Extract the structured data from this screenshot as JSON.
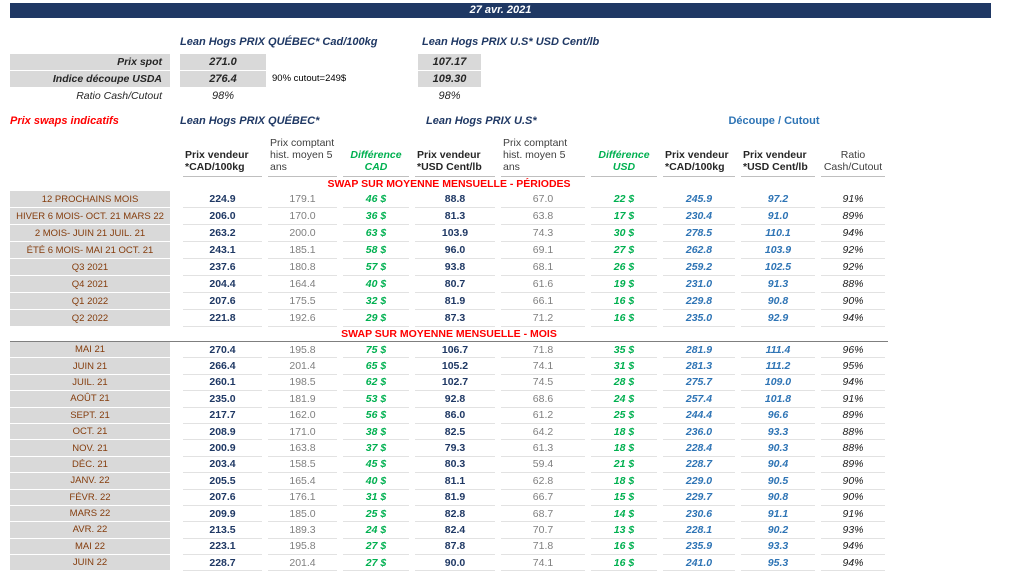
{
  "date": "27 avr. 2021",
  "spot": {
    "qc_title": "Lean Hogs PRIX QUÉBEC* Cad/100kg",
    "us_title": "Lean Hogs PRIX U.S* USD Cent/lb",
    "prix_spot_label": "Prix spot",
    "prix_spot_qc": "271.0",
    "prix_spot_us": "107.17",
    "indice_label": "Indice découpe USDA",
    "indice_qc": "276.4",
    "indice_us": "109.30",
    "indice_note": "90% cutout=249$",
    "ratio_label": "Ratio Cash/Cutout",
    "ratio_qc": "98%",
    "ratio_us": "98%"
  },
  "swaps": {
    "title": "Prix swaps indicatifs",
    "group_qc": "Lean Hogs PRIX QUÉBEC*",
    "group_us": "Lean Hogs PRIX U.S*",
    "group_cutout": "Découpe / Cutout",
    "col_headers": [
      "",
      "Prix vendeur *CAD/100kg",
      "Prix comptant hist. moyen 5 ans",
      "Différence CAD",
      "Prix vendeur *USD Cent/lb",
      "Prix comptant hist. moyen 5 ans",
      "Différence USD",
      "Prix vendeur *CAD/100kg",
      "Prix vendeur *USD Cent/lb",
      "Ratio Cash/Cutout"
    ],
    "sections": [
      {
        "title": "SWAP SUR MOYENNE MENSUELLE - PÉRIODES",
        "rows": [
          [
            "12 PROCHAINS MOIS",
            "224.9",
            "179.1",
            "46 $",
            "88.8",
            "67.0",
            "22 $",
            "245.9",
            "97.2",
            "91%"
          ],
          [
            "HIVER 6 MOIS- OCT. 21 MARS 22",
            "206.0",
            "170.0",
            "36 $",
            "81.3",
            "63.8",
            "17 $",
            "230.4",
            "91.0",
            "89%"
          ],
          [
            "2 MOIS- JUIN 21 JUIL. 21",
            "263.2",
            "200.0",
            "63 $",
            "103.9",
            "74.3",
            "30 $",
            "278.5",
            "110.1",
            "94%"
          ],
          [
            "ÉTÉ 6 MOIS- MAI 21 OCT. 21",
            "243.1",
            "185.1",
            "58 $",
            "96.0",
            "69.1",
            "27 $",
            "262.8",
            "103.9",
            "92%"
          ],
          [
            "Q3 2021",
            "237.6",
            "180.8",
            "57 $",
            "93.8",
            "68.1",
            "26 $",
            "259.2",
            "102.5",
            "92%"
          ],
          [
            "Q4 2021",
            "204.4",
            "164.4",
            "40 $",
            "80.7",
            "61.6",
            "19 $",
            "231.0",
            "91.3",
            "88%"
          ],
          [
            "Q1 2022",
            "207.6",
            "175.5",
            "32 $",
            "81.9",
            "66.1",
            "16 $",
            "229.8",
            "90.8",
            "90%"
          ],
          [
            "Q2 2022",
            "221.8",
            "192.6",
            "29 $",
            "87.3",
            "71.2",
            "16 $",
            "235.0",
            "92.9",
            "94%"
          ]
        ]
      },
      {
        "title": "SWAP SUR MOYENNE MENSUELLE - MOIS",
        "rows": [
          [
            "MAI 21",
            "270.4",
            "195.8",
            "75 $",
            "106.7",
            "71.8",
            "35 $",
            "281.9",
            "111.4",
            "96%"
          ],
          [
            "JUIN 21",
            "266.4",
            "201.4",
            "65 $",
            "105.2",
            "74.1",
            "31 $",
            "281.3",
            "111.2",
            "95%"
          ],
          [
            "JUIL. 21",
            "260.1",
            "198.5",
            "62 $",
            "102.7",
            "74.5",
            "28 $",
            "275.7",
            "109.0",
            "94%"
          ],
          [
            "AOÛT 21",
            "235.0",
            "181.9",
            "53 $",
            "92.8",
            "68.6",
            "24 $",
            "257.4",
            "101.8",
            "91%"
          ],
          [
            "SEPT. 21",
            "217.7",
            "162.0",
            "56 $",
            "86.0",
            "61.2",
            "25 $",
            "244.4",
            "96.6",
            "89%"
          ],
          [
            "OCT. 21",
            "208.9",
            "171.0",
            "38 $",
            "82.5",
            "64.2",
            "18 $",
            "236.0",
            "93.3",
            "88%"
          ],
          [
            "NOV. 21",
            "200.9",
            "163.8",
            "37 $",
            "79.3",
            "61.3",
            "18 $",
            "228.4",
            "90.3",
            "88%"
          ],
          [
            "DÉC. 21",
            "203.4",
            "158.5",
            "45 $",
            "80.3",
            "59.4",
            "21 $",
            "228.7",
            "90.4",
            "89%"
          ],
          [
            "JANV. 22",
            "205.5",
            "165.4",
            "40 $",
            "81.1",
            "62.8",
            "18 $",
            "229.0",
            "90.5",
            "90%"
          ],
          [
            "FÉVR. 22",
            "207.6",
            "176.1",
            "31 $",
            "81.9",
            "66.7",
            "15 $",
            "229.7",
            "90.8",
            "90%"
          ],
          [
            "MARS 22",
            "209.9",
            "185.0",
            "25 $",
            "82.8",
            "68.7",
            "14 $",
            "230.6",
            "91.1",
            "91%"
          ],
          [
            "AVR. 22",
            "213.5",
            "189.3",
            "24 $",
            "82.4",
            "70.7",
            "13 $",
            "228.1",
            "90.2",
            "93%"
          ],
          [
            "MAI 22",
            "223.1",
            "195.8",
            "27 $",
            "87.8",
            "71.8",
            "16 $",
            "235.9",
            "93.3",
            "94%"
          ],
          [
            "JUIN 22",
            "228.7",
            "201.4",
            "27 $",
            "90.0",
            "74.1",
            "16 $",
            "241.0",
            "95.3",
            "94%"
          ]
        ]
      }
    ]
  }
}
